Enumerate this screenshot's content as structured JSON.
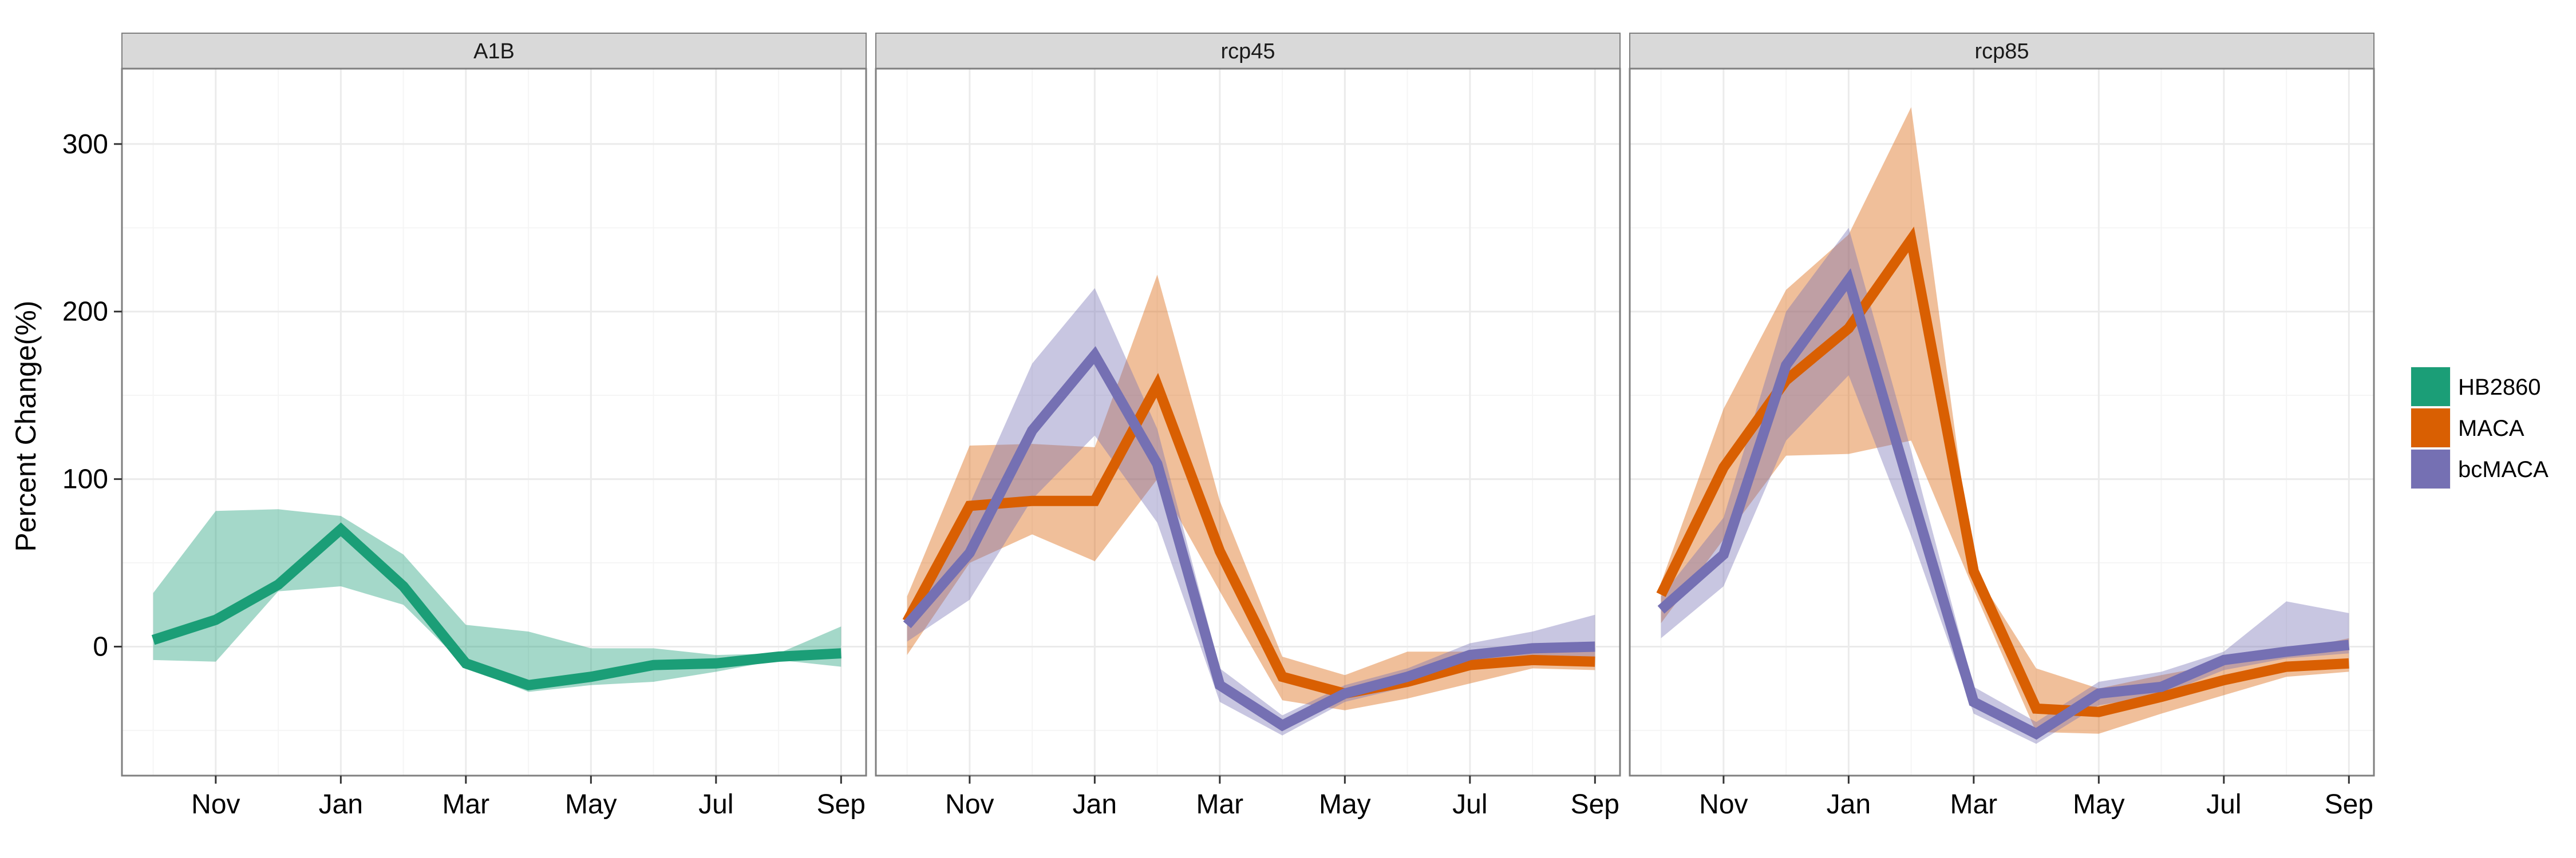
{
  "chart_data": {
    "type": "line",
    "ylabel": "Percent Change(%)",
    "xlabel": "",
    "x_ticks": [
      "Nov",
      "Jan",
      "Mar",
      "May",
      "Jul",
      "Sep"
    ],
    "x_tick_positions": [
      2,
      4,
      6,
      8,
      10,
      12
    ],
    "xlim": [
      0.5,
      12.4
    ],
    "y_ticks": [
      0,
      100,
      200,
      300
    ],
    "ylim": [
      -77,
      345
    ],
    "grid": true,
    "legend_position": "right",
    "series_styles": [
      {
        "name": "HB2860",
        "color": "#1b9e77"
      },
      {
        "name": "MACA",
        "color": "#d95f02"
      },
      {
        "name": "bcMACA",
        "color": "#7570b3"
      }
    ],
    "panels": [
      {
        "title": "A1B",
        "series": [
          {
            "name": "HB2860",
            "x": [
              1,
              2,
              3,
              4,
              5,
              6,
              7,
              8,
              9,
              10,
              11,
              12
            ],
            "values": [
              4,
              16,
              37,
              70,
              36,
              -10,
              -23,
              -18,
              -11,
              -10,
              -6,
              -4
            ],
            "lower": [
              -8,
              -9,
              33,
              36,
              25,
              -12,
              -27,
              -23,
              -21,
              -15,
              -8,
              -12
            ],
            "upper": [
              32,
              81,
              82,
              78,
              55,
              13,
              9,
              -1,
              -1,
              -5,
              -4,
              12
            ]
          }
        ]
      },
      {
        "title": "rcp45",
        "series": [
          {
            "name": "MACA",
            "x": [
              1,
              2,
              3,
              4,
              5,
              6,
              7,
              8,
              9,
              10,
              11,
              12
            ],
            "values": [
              15,
              84,
              87,
              87,
              156,
              57,
              -18,
              -28,
              -21,
              -11,
              -8,
              -9
            ],
            "lower": [
              -5,
              50,
              67,
              51,
              100,
              33,
              -32,
              -38,
              -31,
              -22,
              -13,
              -14
            ],
            "upper": [
              30,
              120,
              121,
              119,
              222,
              87,
              -6,
              -17,
              -3,
              -3,
              2,
              3
            ]
          },
          {
            "name": "bcMACA",
            "x": [
              1,
              2,
              3,
              4,
              5,
              6,
              7,
              8,
              9,
              10,
              11,
              12
            ],
            "values": [
              13,
              56,
              129,
              174,
              109,
              -23,
              -47,
              -28,
              -18,
              -5,
              -1,
              0
            ],
            "lower": [
              3,
              28,
              88,
              126,
              74,
              -33,
              -53,
              -33,
              -24,
              -10,
              -5,
              -6
            ],
            "upper": [
              22,
              85,
              169,
              214,
              130,
              -13,
              -41,
              -23,
              -13,
              2,
              9,
              19
            ]
          }
        ]
      },
      {
        "title": "rcp85",
        "series": [
          {
            "name": "MACA",
            "x": [
              1,
              2,
              3,
              4,
              5,
              6,
              7,
              8,
              9,
              10,
              11,
              12
            ],
            "values": [
              31,
              107,
              159,
              190,
              243,
              45,
              -37,
              -39,
              -30,
              -20,
              -12,
              -10
            ],
            "lower": [
              14,
              64,
              114,
              115,
              123,
              34,
              -51,
              -52,
              -40,
              -29,
              -18,
              -15
            ],
            "upper": [
              38,
              142,
              213,
              246,
              322,
              46,
              -13,
              -25,
              -17,
              -10,
              -3,
              5
            ]
          },
          {
            "name": "bcMACA",
            "x": [
              1,
              2,
              3,
              4,
              5,
              6,
              7,
              8,
              9,
              10,
              11,
              12
            ],
            "values": [
              22,
              55,
              168,
              219,
              92,
              -33,
              -52,
              -28,
              -24,
              -8,
              -3,
              1
            ],
            "lower": [
              5,
              36,
              123,
              162,
              66,
              -40,
              -58,
              -35,
              -29,
              -14,
              -7,
              -4
            ],
            "upper": [
              30,
              77,
              200,
              250,
              117,
              -24,
              -45,
              -21,
              -15,
              -3,
              27,
              20
            ]
          }
        ]
      }
    ]
  }
}
